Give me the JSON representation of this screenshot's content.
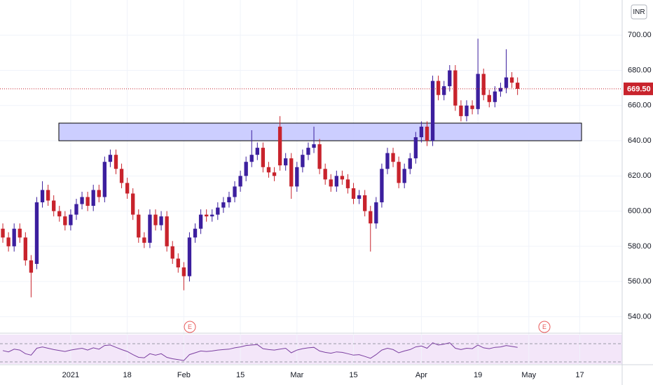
{
  "chart_data": {
    "type": "candlestick",
    "currency": "INR",
    "up_color": "#3c1f9e",
    "down_color": "#c8232c",
    "categories": [
      null,
      null,
      null,
      null,
      null,
      null,
      null,
      null,
      null,
      null,
      null,
      null,
      "2021",
      null,
      null,
      null,
      null,
      null,
      null,
      null,
      null,
      null,
      "18",
      null,
      null,
      null,
      null,
      null,
      null,
      null,
      null,
      null,
      "Feb",
      null,
      null,
      null,
      null,
      null,
      null,
      null,
      null,
      null,
      "15",
      null,
      null,
      null,
      null,
      null,
      null,
      null,
      null,
      null,
      "Mar",
      null,
      null,
      null,
      null,
      null,
      null,
      null,
      null,
      null,
      "15",
      null,
      null,
      null,
      null,
      null,
      null,
      null,
      null,
      null,
      null,
      null,
      "Apr",
      null,
      null,
      null,
      null,
      null,
      null,
      null,
      null,
      null,
      "19",
      null,
      null,
      null,
      null,
      null,
      null,
      null,
      null,
      "May",
      null,
      null,
      null,
      null,
      null,
      null,
      null,
      null,
      "17",
      null,
      null,
      null,
      null,
      null,
      null,
      null
    ],
    "open": [
      590,
      585,
      580,
      590,
      585,
      572,
      570,
      605,
      612,
      606,
      600,
      597,
      592,
      598,
      604,
      608,
      603,
      612,
      608,
      628,
      632,
      624,
      616,
      610,
      598,
      585,
      582,
      598,
      592,
      597,
      580,
      573,
      568,
      563,
      585,
      590,
      598,
      597,
      598,
      602,
      605,
      608,
      614,
      620,
      628,
      632,
      636,
      625,
      622,
      648,
      626,
      630,
      614,
      625,
      632,
      636,
      638,
      624,
      618,
      614,
      620,
      618,
      613,
      607,
      609,
      600,
      593,
      605,
      624,
      633,
      628,
      616,
      624,
      630,
      642,
      648,
      640,
      674,
      666,
      671,
      680,
      660,
      654,
      660,
      658,
      678,
      666,
      662,
      668,
      670,
      676,
      673,
      null,
      null,
      null,
      null,
      null,
      null,
      null,
      null,
      null,
      null,
      null,
      null,
      null,
      null,
      null,
      null,
      null,
      null
    ],
    "high": [
      593,
      588,
      593,
      593,
      588,
      575,
      608,
      617,
      615,
      609,
      603,
      600,
      601,
      607,
      611,
      611,
      615,
      615,
      631,
      635,
      635,
      627,
      619,
      613,
      601,
      588,
      601,
      601,
      600,
      600,
      583,
      576,
      571,
      588,
      593,
      601,
      601,
      601,
      605,
      608,
      611,
      617,
      623,
      631,
      646,
      639,
      639,
      628,
      625,
      654,
      633,
      633,
      628,
      635,
      639,
      648,
      641,
      627,
      621,
      623,
      623,
      621,
      616,
      612,
      612,
      603,
      608,
      627,
      636,
      636,
      631,
      627,
      633,
      645,
      651,
      651,
      677,
      677,
      674,
      683,
      683,
      663,
      663,
      663,
      698,
      681,
      669,
      671,
      673,
      692,
      679,
      676,
      null,
      null,
      null,
      null,
      null,
      null,
      null,
      null,
      null,
      null,
      null,
      null,
      null,
      null,
      null,
      null,
      null,
      null
    ],
    "low": [
      582,
      577,
      577,
      582,
      569,
      551,
      567,
      602,
      603,
      597,
      594,
      589,
      589,
      595,
      601,
      600,
      600,
      605,
      605,
      625,
      621,
      613,
      607,
      595,
      582,
      579,
      579,
      589,
      589,
      577,
      570,
      565,
      555,
      560,
      582,
      587,
      594,
      594,
      595,
      599,
      602,
      605,
      611,
      617,
      625,
      629,
      622,
      619,
      617,
      623,
      623,
      607,
      611,
      622,
      629,
      633,
      621,
      615,
      611,
      611,
      615,
      610,
      604,
      604,
      597,
      577,
      590,
      602,
      621,
      625,
      613,
      613,
      621,
      627,
      639,
      637,
      637,
      663,
      663,
      668,
      657,
      651,
      651,
      655,
      655,
      663,
      659,
      659,
      665,
      667,
      670,
      666,
      null,
      null,
      null,
      null,
      null,
      null,
      null,
      null,
      null,
      null,
      null,
      null,
      null,
      null,
      null,
      null,
      null,
      null
    ],
    "close": [
      585,
      580,
      590,
      585,
      572,
      565,
      605,
      612,
      606,
      600,
      597,
      592,
      598,
      604,
      608,
      603,
      612,
      608,
      628,
      632,
      624,
      616,
      610,
      598,
      585,
      582,
      598,
      592,
      597,
      580,
      573,
      568,
      563,
      585,
      590,
      598,
      597,
      598,
      602,
      605,
      608,
      614,
      620,
      628,
      632,
      636,
      625,
      622,
      620,
      626,
      630,
      614,
      625,
      632,
      636,
      638,
      624,
      618,
      614,
      620,
      618,
      613,
      607,
      609,
      600,
      593,
      605,
      624,
      633,
      628,
      616,
      624,
      630,
      642,
      648,
      640,
      674,
      666,
      671,
      680,
      660,
      654,
      660,
      658,
      678,
      666,
      662,
      668,
      670,
      676,
      673,
      669.5,
      null,
      null,
      null,
      null,
      null,
      null,
      null,
      null,
      null,
      null,
      null,
      null,
      null,
      null,
      null,
      null,
      null,
      null
    ],
    "ylim": [
      531,
      720
    ],
    "yticks": [
      {
        "value": 540,
        "label": "540.00"
      },
      {
        "value": 560,
        "label": "560.00"
      },
      {
        "value": 580,
        "label": "580.00"
      },
      {
        "value": 600,
        "label": "600.00"
      },
      {
        "value": 620,
        "label": "620.00"
      },
      {
        "value": 640,
        "label": "640.00"
      },
      {
        "value": 660,
        "label": "660.00"
      },
      {
        "value": 680,
        "label": "680.00"
      },
      {
        "value": 700,
        "label": "700.00"
      }
    ],
    "grid": true,
    "last_price": {
      "value": 669.5,
      "label": "669.50",
      "color": "#c8232c"
    },
    "zone": {
      "low": 640,
      "high": 650,
      "color": "#c7c9ff"
    },
    "earnings_markers": [
      "E",
      "E"
    ],
    "rsi": {
      "color": "#7b3fa0",
      "band": [
        30,
        70
      ],
      "values": [
        55,
        52,
        58,
        56,
        48,
        45,
        60,
        63,
        60,
        57,
        55,
        53,
        56,
        58,
        60,
        56,
        61,
        58,
        66,
        67,
        62,
        57,
        53,
        46,
        40,
        39,
        48,
        45,
        48,
        40,
        37,
        35,
        33,
        46,
        50,
        54,
        53,
        54,
        56,
        57,
        58,
        61,
        63,
        66,
        67,
        68,
        59,
        57,
        56,
        58,
        60,
        50,
        56,
        59,
        61,
        62,
        54,
        51,
        49,
        52,
        51,
        48,
        45,
        46,
        42,
        38,
        46,
        56,
        60,
        57,
        50,
        54,
        57,
        63,
        65,
        60,
        72,
        67,
        69,
        72,
        60,
        57,
        60,
        59,
        67,
        61,
        59,
        62,
        63,
        66,
        64,
        62,
        null,
        null,
        null,
        null,
        null,
        null,
        null,
        null,
        null,
        null,
        null,
        null,
        null,
        null,
        null,
        null,
        null,
        null
      ]
    }
  }
}
